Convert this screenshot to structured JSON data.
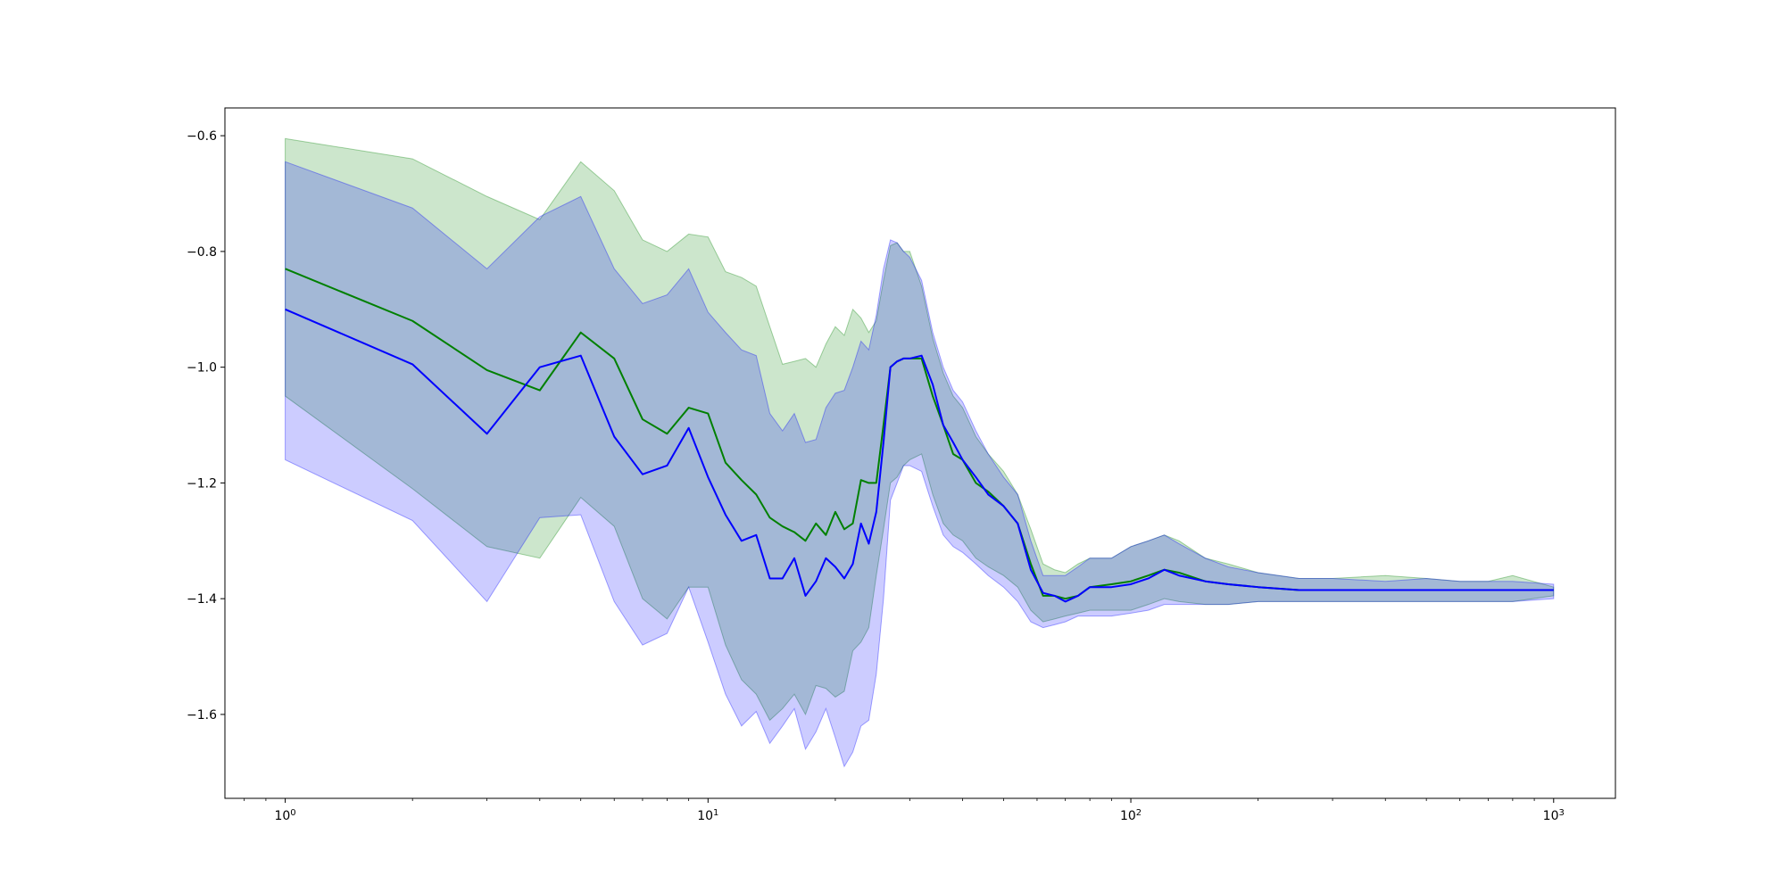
{
  "chart_data": {
    "type": "line",
    "title": "",
    "xlabel": "",
    "ylabel": "",
    "x_scale": "log",
    "xlim": [
      0.72,
      1400
    ],
    "ylim": [
      -1.745,
      -0.552
    ],
    "grid": false,
    "x_ticks": [
      {
        "value": 1,
        "base": "10",
        "exp": "0"
      },
      {
        "value": 10,
        "base": "10",
        "exp": "1"
      },
      {
        "value": 100,
        "base": "10",
        "exp": "2"
      },
      {
        "value": 1000,
        "base": "10",
        "exp": "3"
      }
    ],
    "y_ticks": [
      {
        "value": -0.6,
        "label": "−0.6"
      },
      {
        "value": -0.8,
        "label": "−0.8"
      },
      {
        "value": -1.0,
        "label": "−1.0"
      },
      {
        "value": -1.2,
        "label": "−1.2"
      },
      {
        "value": -1.4,
        "label": "−1.4"
      },
      {
        "value": -1.6,
        "label": "−1.6"
      }
    ],
    "series": [
      {
        "color": "#008000",
        "band_color": "#008000",
        "band_opacity": 0.2,
        "x": [
          1,
          2,
          3,
          4,
          5,
          6,
          7,
          8,
          9,
          10,
          11,
          12,
          13,
          14,
          15,
          16,
          17,
          18,
          19,
          20,
          21,
          22,
          23,
          24,
          25,
          26,
          27,
          28,
          29,
          30,
          32,
          34,
          36,
          38,
          40,
          43,
          46,
          50,
          54,
          58,
          62,
          66,
          70,
          75,
          80,
          90,
          100,
          110,
          120,
          130,
          150,
          170,
          200,
          250,
          300,
          400,
          500,
          600,
          700,
          800,
          1000
        ],
        "mean": [
          -0.83,
          -0.92,
          -1.005,
          -1.04,
          -0.94,
          -0.985,
          -1.09,
          -1.115,
          -1.07,
          -1.08,
          -1.165,
          -1.195,
          -1.22,
          -1.26,
          -1.275,
          -1.285,
          -1.3,
          -1.27,
          -1.29,
          -1.25,
          -1.28,
          -1.27,
          -1.195,
          -1.2,
          -1.2,
          -1.1,
          -1.0,
          -0.99,
          -0.985,
          -0.985,
          -0.985,
          -1.05,
          -1.1,
          -1.15,
          -1.16,
          -1.2,
          -1.215,
          -1.24,
          -1.27,
          -1.34,
          -1.395,
          -1.395,
          -1.4,
          -1.395,
          -1.38,
          -1.375,
          -1.37,
          -1.36,
          -1.35,
          -1.355,
          -1.37,
          -1.375,
          -1.38,
          -1.385,
          -1.385,
          -1.385,
          -1.385,
          -1.385,
          -1.385,
          -1.385,
          -1.385
        ],
        "upper": [
          -0.605,
          -0.64,
          -0.705,
          -0.745,
          -0.645,
          -0.695,
          -0.78,
          -0.8,
          -0.77,
          -0.775,
          -0.835,
          -0.845,
          -0.86,
          -0.93,
          -0.995,
          -0.99,
          -0.985,
          -1.0,
          -0.96,
          -0.93,
          -0.945,
          -0.9,
          -0.915,
          -0.94,
          -0.92,
          -0.85,
          -0.79,
          -0.785,
          -0.8,
          -0.8,
          -0.86,
          -0.95,
          -1.01,
          -1.05,
          -1.07,
          -1.12,
          -1.15,
          -1.18,
          -1.22,
          -1.28,
          -1.34,
          -1.35,
          -1.355,
          -1.34,
          -1.33,
          -1.33,
          -1.31,
          -1.3,
          -1.29,
          -1.3,
          -1.33,
          -1.34,
          -1.355,
          -1.365,
          -1.365,
          -1.36,
          -1.365,
          -1.37,
          -1.37,
          -1.36,
          -1.38
        ],
        "lower": [
          -1.05,
          -1.21,
          -1.31,
          -1.33,
          -1.225,
          -1.275,
          -1.4,
          -1.435,
          -1.38,
          -1.38,
          -1.48,
          -1.54,
          -1.565,
          -1.61,
          -1.59,
          -1.565,
          -1.6,
          -1.55,
          -1.555,
          -1.57,
          -1.56,
          -1.49,
          -1.475,
          -1.45,
          -1.36,
          -1.28,
          -1.2,
          -1.19,
          -1.17,
          -1.16,
          -1.15,
          -1.22,
          -1.27,
          -1.29,
          -1.3,
          -1.33,
          -1.345,
          -1.36,
          -1.38,
          -1.42,
          -1.44,
          -1.435,
          -1.43,
          -1.425,
          -1.42,
          -1.42,
          -1.42,
          -1.41,
          -1.4,
          -1.405,
          -1.41,
          -1.41,
          -1.405,
          -1.405,
          -1.405,
          -1.405,
          -1.405,
          -1.405,
          -1.405,
          -1.405,
          -1.395
        ]
      },
      {
        "color": "#0000ff",
        "band_color": "#0000ff",
        "band_opacity": 0.2,
        "x": [
          1,
          2,
          3,
          4,
          5,
          6,
          7,
          8,
          9,
          10,
          11,
          12,
          13,
          14,
          15,
          16,
          17,
          18,
          19,
          20,
          21,
          22,
          23,
          24,
          25,
          26,
          27,
          28,
          29,
          30,
          32,
          34,
          36,
          38,
          40,
          43,
          46,
          50,
          54,
          58,
          62,
          66,
          70,
          75,
          80,
          90,
          100,
          110,
          120,
          130,
          150,
          170,
          200,
          250,
          300,
          400,
          500,
          600,
          700,
          800,
          1000
        ],
        "mean": [
          -0.9,
          -0.995,
          -1.115,
          -1.0,
          -0.98,
          -1.12,
          -1.185,
          -1.17,
          -1.105,
          -1.19,
          -1.255,
          -1.3,
          -1.29,
          -1.365,
          -1.365,
          -1.33,
          -1.395,
          -1.37,
          -1.33,
          -1.345,
          -1.365,
          -1.34,
          -1.27,
          -1.305,
          -1.25,
          -1.13,
          -1.0,
          -0.99,
          -0.985,
          -0.985,
          -0.98,
          -1.03,
          -1.1,
          -1.13,
          -1.16,
          -1.19,
          -1.22,
          -1.24,
          -1.27,
          -1.35,
          -1.39,
          -1.395,
          -1.405,
          -1.395,
          -1.38,
          -1.38,
          -1.375,
          -1.365,
          -1.35,
          -1.36,
          -1.37,
          -1.375,
          -1.38,
          -1.385,
          -1.385,
          -1.385,
          -1.385,
          -1.385,
          -1.385,
          -1.385,
          -1.385
        ],
        "upper": [
          -0.645,
          -0.725,
          -0.83,
          -0.74,
          -0.705,
          -0.83,
          -0.89,
          -0.875,
          -0.83,
          -0.905,
          -0.94,
          -0.97,
          -0.98,
          -1.08,
          -1.11,
          -1.08,
          -1.13,
          -1.125,
          -1.07,
          -1.045,
          -1.04,
          -1.0,
          -0.955,
          -0.97,
          -0.91,
          -0.83,
          -0.78,
          -0.785,
          -0.8,
          -0.81,
          -0.85,
          -0.94,
          -1.0,
          -1.04,
          -1.06,
          -1.11,
          -1.15,
          -1.19,
          -1.22,
          -1.3,
          -1.36,
          -1.36,
          -1.36,
          -1.345,
          -1.33,
          -1.33,
          -1.31,
          -1.3,
          -1.29,
          -1.305,
          -1.33,
          -1.345,
          -1.355,
          -1.365,
          -1.365,
          -1.37,
          -1.365,
          -1.37,
          -1.37,
          -1.37,
          -1.375
        ],
        "lower": [
          -1.16,
          -1.265,
          -1.405,
          -1.26,
          -1.255,
          -1.405,
          -1.48,
          -1.46,
          -1.38,
          -1.475,
          -1.565,
          -1.62,
          -1.595,
          -1.65,
          -1.62,
          -1.59,
          -1.66,
          -1.63,
          -1.59,
          -1.64,
          -1.69,
          -1.665,
          -1.62,
          -1.61,
          -1.53,
          -1.4,
          -1.23,
          -1.2,
          -1.17,
          -1.17,
          -1.18,
          -1.24,
          -1.29,
          -1.31,
          -1.32,
          -1.34,
          -1.36,
          -1.38,
          -1.405,
          -1.44,
          -1.45,
          -1.445,
          -1.44,
          -1.43,
          -1.43,
          -1.43,
          -1.425,
          -1.42,
          -1.41,
          -1.41,
          -1.41,
          -1.41,
          -1.405,
          -1.405,
          -1.405,
          -1.405,
          -1.405,
          -1.405,
          -1.405,
          -1.405,
          -1.4
        ]
      }
    ]
  }
}
